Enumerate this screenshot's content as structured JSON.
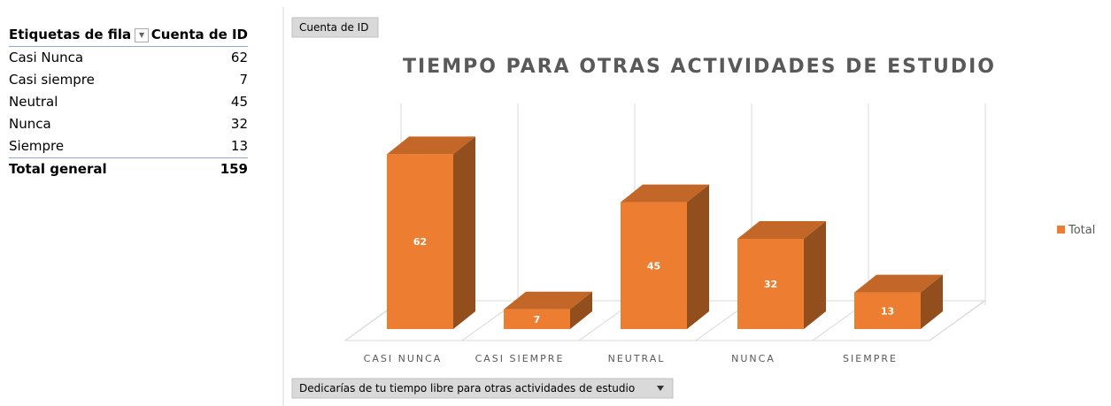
{
  "table": {
    "header": [
      "Etiquetas de fila",
      "Cuenta de ID"
    ],
    "rows": [
      [
        "Casi Nunca",
        "62"
      ],
      [
        "Casi siempre",
        "7"
      ],
      [
        "Neutral",
        "45"
      ],
      [
        "Nunca",
        "32"
      ],
      [
        "Siempre",
        "13"
      ]
    ],
    "total": [
      "Total general",
      "159"
    ]
  },
  "chart_data": {
    "type": "bar3d",
    "title": "TIEMPO PARA OTRAS ACTIVIDADES DE ESTUDIO",
    "value_field_button": "Cuenta de ID",
    "axis_field_button": "Dedicarías de tu tiempo libre para otras actividades de estudio",
    "categories": [
      "CASI NUNCA",
      "CASI SIEMPRE",
      "NEUTRAL",
      "NUNCA",
      "SIEMPRE"
    ],
    "series": [
      {
        "name": "Total",
        "color": "#ed7d31",
        "values": [
          62,
          7,
          45,
          32,
          13
        ]
      }
    ],
    "ylim": [
      0,
      80
    ],
    "legend": "right"
  }
}
